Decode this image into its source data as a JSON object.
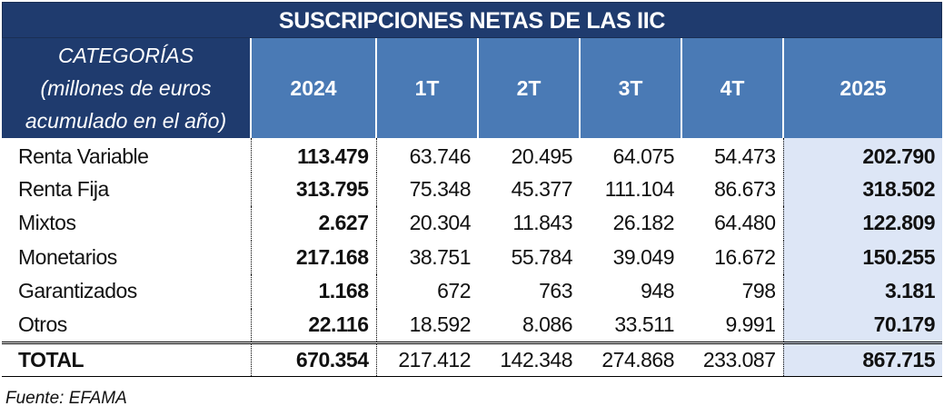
{
  "title": "SUSCRIPCIONES NETAS DE LAS IIC",
  "header": {
    "category_lines": [
      "CATEGORÍAS",
      "(millones de euros",
      "acumulado en el año)"
    ],
    "columns": [
      "2024",
      "1T",
      "2T",
      "3T",
      "4T",
      "2025"
    ]
  },
  "rows": [
    {
      "label": "Renta Variable",
      "values": [
        "113.479",
        "63.746",
        "20.495",
        "64.075",
        "54.473",
        "202.790"
      ]
    },
    {
      "label": "Renta Fija",
      "values": [
        "313.795",
        "75.348",
        "45.377",
        "111.104",
        "86.673",
        "318.502"
      ]
    },
    {
      "label": "Mixtos",
      "values": [
        "2.627",
        "20.304",
        "11.843",
        "26.182",
        "64.480",
        "122.809"
      ]
    },
    {
      "label": "Monetarios",
      "values": [
        "217.168",
        "38.751",
        "55.784",
        "39.049",
        "16.672",
        "150.255"
      ]
    },
    {
      "label": "Garantizados",
      "values": [
        "1.168",
        "672",
        "763",
        "948",
        "798",
        "3.181"
      ]
    },
    {
      "label": "Otros",
      "values": [
        "22.116",
        "18.592",
        "8.086",
        "33.511",
        "9.991",
        "70.179"
      ]
    }
  ],
  "total": {
    "label": "TOTAL",
    "values": [
      "670.354",
      "217.412",
      "142.348",
      "274.868",
      "233.087",
      "867.715"
    ]
  },
  "source": "Fuente: EFAMA",
  "colors": {
    "title_bg": "#1f3b6e",
    "header_bg": "#4a7ab5",
    "highlight_bg": "#dde6f6"
  }
}
